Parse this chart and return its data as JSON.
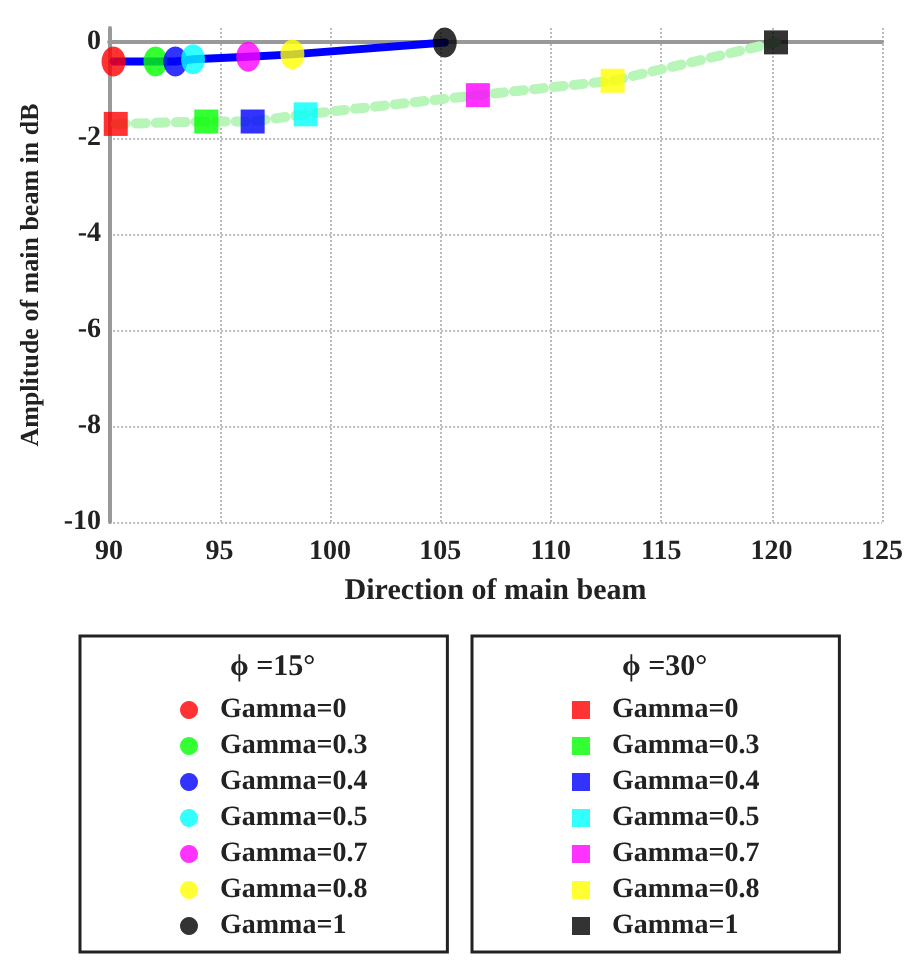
{
  "chart_data": {
    "type": "scatter",
    "xlabel": "Direction of main beam",
    "ylabel": "Amplitude of main beam in dB",
    "xlim": [
      90,
      125
    ],
    "xticks": [
      90,
      95,
      100,
      105,
      110,
      115,
      120,
      125
    ],
    "ylim": [
      -10,
      0.3
    ],
    "yticks": [
      -10,
      -8,
      -6,
      -4,
      -2,
      0
    ],
    "grid": true,
    "legend": "bottom",
    "legend_title": [
      "ϕ =15°",
      "ϕ =30°"
    ],
    "series": [
      {
        "type": "line",
        "color": "#0000ff",
        "marker": "none",
        "line_style": "solid",
        "x": [
          90.2,
          92.1,
          93,
          93.8,
          96.3,
          98.3,
          105.2
        ],
        "values": [
          -0.4,
          -0.4,
          -0.4,
          -0.35,
          -0.3,
          -0.25,
          0
        ]
      },
      {
        "name": "Gamma=0",
        "color": "#ff0000",
        "marker": "circle",
        "x": [
          90.2
        ],
        "values": [
          -0.4
        ]
      },
      {
        "name": "Gamma=0.3",
        "color": "#00ff00",
        "marker": "circle",
        "x": [
          92.1
        ],
        "values": [
          -0.4
        ]
      },
      {
        "name": "Gamma=0.4",
        "color": "#0000ff",
        "marker": "circle",
        "x": [
          93
        ],
        "values": [
          -0.4
        ]
      },
      {
        "name": "Gamma=0.5",
        "color": "#00ffff",
        "marker": "circle",
        "x": [
          93.8
        ],
        "values": [
          -0.35
        ]
      },
      {
        "name": "Gamma=0.7",
        "color": "#ff00ff",
        "marker": "circle",
        "x": [
          96.3
        ],
        "values": [
          -0.3
        ]
      },
      {
        "name": "Gamma=0.8",
        "color": "#ffff00",
        "marker": "circle",
        "x": [
          98.3
        ],
        "values": [
          -0.25
        ]
      },
      {
        "name": "Gamma=1",
        "color": "#000000",
        "marker": "circle",
        "x": [
          105.2
        ],
        "values": [
          0
        ]
      },
      {
        "type": "line",
        "color": "#b8f5b8",
        "marker": "none",
        "line_style": "dotted",
        "x": [
          90.3,
          94.4,
          96.5,
          98.9,
          106.7,
          112.8,
          120.2
        ],
        "values": [
          -1.7,
          -1.65,
          -1.65,
          -1.5,
          -1.1,
          -0.8,
          0
        ]
      },
      {
        "name": "Gamma=0",
        "color": "#ff0000",
        "marker": "square",
        "x": [
          90.3
        ],
        "values": [
          -1.7
        ]
      },
      {
        "name": "Gamma=0.3",
        "color": "#00ff00",
        "marker": "square",
        "x": [
          94.4
        ],
        "values": [
          -1.65
        ]
      },
      {
        "name": "Gamma=0.4",
        "color": "#0000ff",
        "marker": "square",
        "x": [
          96.5
        ],
        "values": [
          -1.65
        ]
      },
      {
        "name": "Gamma=0.5",
        "color": "#00ffff",
        "marker": "square",
        "x": [
          98.9
        ],
        "values": [
          -1.5
        ]
      },
      {
        "name": "Gamma=0.7",
        "color": "#ff00ff",
        "marker": "square",
        "x": [
          106.7
        ],
        "values": [
          -1.1
        ]
      },
      {
        "name": "Gamma=0.8",
        "color": "#ffff00",
        "marker": "square",
        "x": [
          112.8
        ],
        "values": [
          -0.8
        ]
      },
      {
        "name": "Gamma=1",
        "color": "#000000",
        "marker": "square",
        "x": [
          120.2
        ],
        "values": [
          0
        ]
      }
    ]
  }
}
